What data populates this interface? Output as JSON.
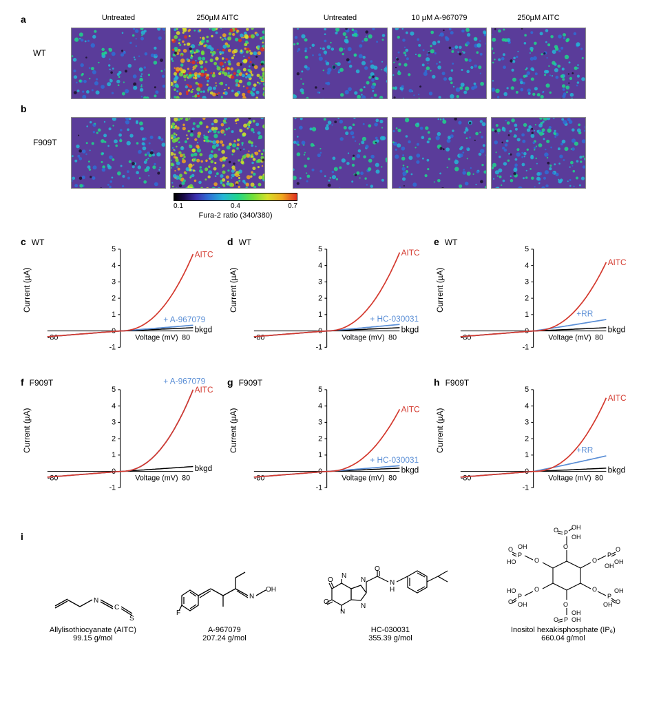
{
  "imaging": {
    "rows": [
      {
        "letter": "a",
        "label": "WT"
      },
      {
        "letter": "b",
        "label": "F909T"
      }
    ],
    "left_headers": [
      "Untreated",
      "250µM AITC"
    ],
    "right_headers": [
      "Untreated",
      "10 µM A-967079",
      "250µM AITC"
    ],
    "panels": {
      "a_left": [
        {
          "bg": "#5a3c9a",
          "density": 110,
          "palette": "low"
        },
        {
          "bg": "#5a3c9a",
          "density": 360,
          "palette": "high"
        }
      ],
      "a_right": [
        {
          "bg": "#5a3c9a",
          "density": 120,
          "palette": "low"
        },
        {
          "bg": "#5a3c9a",
          "density": 115,
          "palette": "low"
        },
        {
          "bg": "#5a3c9a",
          "density": 120,
          "palette": "low"
        }
      ],
      "b_left": [
        {
          "bg": "#5a3c9a",
          "density": 110,
          "palette": "low"
        },
        {
          "bg": "#5a3c9a",
          "density": 300,
          "palette": "mid"
        }
      ],
      "b_right": [
        {
          "bg": "#5a3c9a",
          "density": 100,
          "palette": "low"
        },
        {
          "bg": "#5a3c9a",
          "density": 100,
          "palette": "low"
        },
        {
          "bg": "#5a3c9a",
          "density": 170,
          "palette": "low"
        }
      ]
    },
    "colorbar": {
      "min": "0.1",
      "mid": "0.4",
      "max": "0.7",
      "label": "Fura-2 ratio (340/380)"
    }
  },
  "iv": {
    "xlabel": "Voltage (mV)",
    "ylabel": "Current (µA)",
    "xlim": [
      -80,
      80
    ],
    "ylim": [
      -1,
      5
    ],
    "yticks": [
      -1,
      0,
      1,
      2,
      3,
      4,
      5
    ],
    "xticks": [
      -80,
      80
    ],
    "colors": {
      "aitc": "#d43a2f",
      "blocker": "#5b8fd6",
      "bkgd": "#000000"
    },
    "panels": [
      {
        "letter": "c",
        "title": "WT",
        "blocker_label": "+ A-967079",
        "traces": {
          "aitc_max": 4.7,
          "blocker_max": 0.35,
          "bkgd_max": 0.2,
          "overlay": false
        }
      },
      {
        "letter": "d",
        "title": "WT",
        "blocker_label": "+ HC-030031",
        "traces": {
          "aitc_max": 4.8,
          "blocker_max": 0.4,
          "bkgd_max": 0.2,
          "overlay": false
        }
      },
      {
        "letter": "e",
        "title": "WT",
        "blocker_label": "+RR",
        "traces": {
          "aitc_max": 4.2,
          "blocker_max": 0.7,
          "bkgd_max": 0.2,
          "overlay": false
        }
      },
      {
        "letter": "f",
        "title": "F909T",
        "blocker_label": "+ A-967079",
        "traces": {
          "aitc_max": 5.0,
          "blocker_max": 5.0,
          "bkgd_max": 0.3,
          "overlay": true
        }
      },
      {
        "letter": "g",
        "title": "F909T",
        "blocker_label": "+ HC-030031",
        "traces": {
          "aitc_max": 3.8,
          "blocker_max": 0.35,
          "bkgd_max": 0.2,
          "overlay": false
        }
      },
      {
        "letter": "h",
        "title": "F909T",
        "blocker_label": "+RR",
        "traces": {
          "aitc_max": 4.5,
          "blocker_max": 0.95,
          "bkgd_max": 0.2,
          "overlay": false
        }
      }
    ],
    "labels": {
      "aitc": "AITC",
      "bkgd": "bkgd"
    }
  },
  "chem": {
    "letter": "i",
    "items": [
      {
        "name": "Allylisothiocyanate (AITC)",
        "mw": "99.15 g/mol"
      },
      {
        "name": "A-967079",
        "mw": "207.24 g/mol"
      },
      {
        "name": "HC-030031",
        "mw": "355.39 g/mol"
      },
      {
        "name": "Inositol hexakisphosphate (IP₆)",
        "mw": "660.04 g/mol"
      }
    ]
  }
}
